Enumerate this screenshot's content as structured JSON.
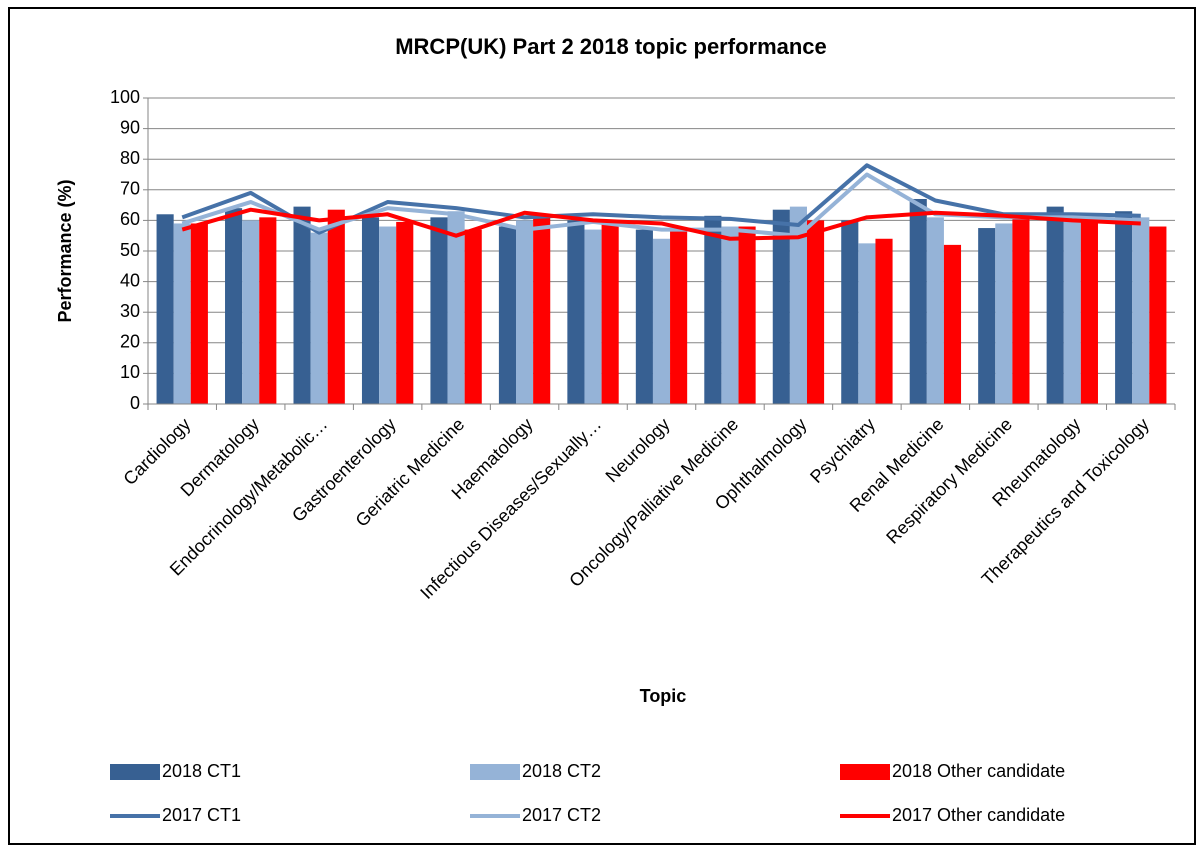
{
  "chart_data": {
    "type": "combo",
    "title": "MRCP(UK) Part 2 2018 topic performance",
    "x_label": "Topic",
    "y_label": "Performance (%)",
    "categories": [
      "Cardiology",
      "Dermatology",
      "Endocrinology/Metabolic…",
      "Gastroenterology",
      "Geriatric Medicine",
      "Haematology",
      "Infectious Diseases/Sexually…",
      "Neurology",
      "Oncology/Palliative Medicine",
      "Ophthalmology",
      "Psychiatry",
      "Renal Medicine",
      "Respiratory Medicine",
      "Rheumatology",
      "Therapeutics and Toxicology"
    ],
    "series": [
      {
        "name": "2018 CT1",
        "mark": "bar",
        "color": "#376092",
        "values": [
          62,
          64,
          64.5,
          61,
          61,
          58,
          60,
          57,
          61.5,
          63.5,
          60,
          67,
          57.5,
          64.5,
          63
        ]
      },
      {
        "name": "2018 CT2",
        "mark": "bar",
        "color": "#95b3d7",
        "values": [
          59,
          60,
          56,
          58,
          63,
          60,
          57,
          54,
          58,
          64.5,
          52.5,
          61,
          59,
          60,
          61
        ]
      },
      {
        "name": "2018 Other candidate",
        "mark": "bar",
        "color": "#ff0000",
        "values": [
          59,
          61,
          63.5,
          59.5,
          57,
          61,
          59,
          57,
          58,
          60,
          54,
          52,
          61,
          60,
          58
        ]
      },
      {
        "name": "2017 CT1",
        "mark": "line",
        "color": "#4672a8",
        "values": [
          61,
          69,
          56,
          66,
          64,
          61,
          62,
          61,
          60.5,
          58.5,
          78,
          66.5,
          62,
          62,
          61.5
        ]
      },
      {
        "name": "2017 CT2",
        "mark": "line",
        "color": "#95b3d7",
        "values": [
          59,
          66,
          57,
          64,
          62,
          57,
          59.5,
          57,
          57,
          55,
          75,
          62,
          61,
          61,
          60
        ]
      },
      {
        "name": "2017 Other candidate",
        "mark": "line",
        "color": "#ff0000",
        "values": [
          57,
          63.5,
          60,
          62,
          55,
          62.5,
          60,
          59,
          54,
          54.5,
          61,
          62.5,
          61.5,
          60,
          59
        ]
      }
    ],
    "ylim": [
      0,
      100
    ],
    "yticks": [
      0,
      10,
      20,
      30,
      40,
      50,
      60,
      70,
      80,
      90,
      100
    ],
    "grid": true,
    "legend": "bottom"
  }
}
